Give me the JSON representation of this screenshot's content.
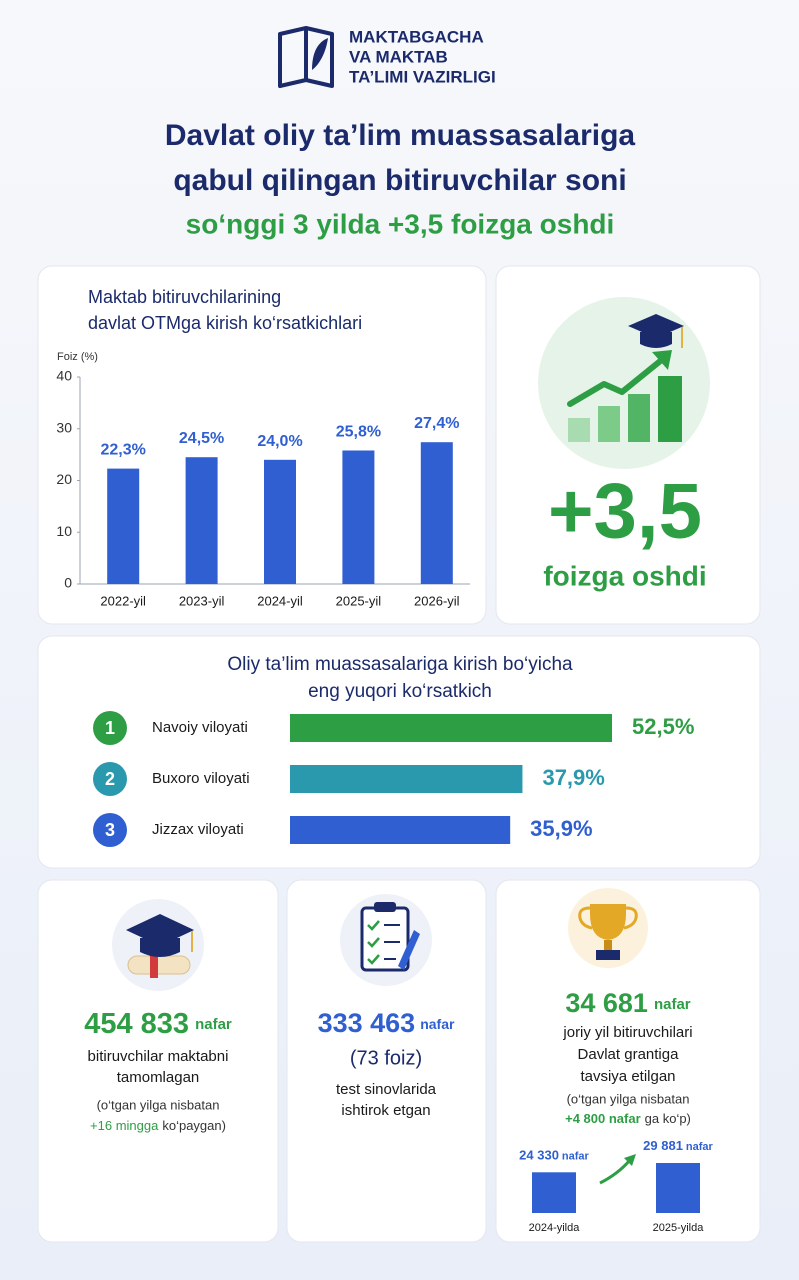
{
  "header": {
    "logo": [
      "MAKTABGACHA",
      "VA MAKTAB",
      "TA’LIMI VAZIRLIGI"
    ],
    "title": [
      "Davlat oliy ta’lim muassasalariga",
      "qabul qilingan bitiruvchilar soni"
    ],
    "subtitle": "so‘nggi 3 yilda +3,5 foizga oshdi"
  },
  "chart_data": [
    {
      "type": "bar",
      "title": [
        "Maktab bitiruvchilarining",
        "davlat OTMga kirish ko‘rsatkichlari"
      ],
      "y_label": "Foiz (%)",
      "categories": [
        "2022-yil",
        "2023-yil",
        "2024-yil",
        "2025-yil",
        "2026-yil"
      ],
      "values": [
        22.3,
        24.5,
        24.0,
        25.8,
        27.4
      ],
      "value_labels": [
        "22,3%",
        "24,5%",
        "24,0%",
        "25,8%",
        "27,4%"
      ],
      "color": "#2f5fd0",
      "ylim": [
        0,
        40
      ],
      "yticks": [
        0,
        10,
        20,
        30,
        40
      ],
      "grid": false
    },
    {
      "type": "hbar",
      "title": [
        "Oliy ta’lim muassasalariga kirish bo‘yicha",
        "eng yuqori ko‘rsatkich"
      ],
      "ranks": [
        "1",
        "2",
        "3"
      ],
      "categories": [
        "Navoiy viloyati",
        "Buxoro viloyati",
        "Jizzax viloyati"
      ],
      "values": [
        52.5,
        37.9,
        35.9
      ],
      "value_labels": [
        "52,5%",
        "37,9%",
        "35,9%"
      ],
      "colors": [
        "#2e9e45",
        "#2a98ad",
        "#2f5fd0"
      ]
    },
    {
      "type": "bar",
      "categories": [
        "2024-yilda",
        "2025-yilda"
      ],
      "values": [
        24330,
        29881
      ],
      "value_labels": [
        "24 330",
        "29 881"
      ],
      "unit": "nafar",
      "color": "#2f5fd0"
    }
  ],
  "highlight": {
    "value": "+3,5",
    "caption": "foizga oshdi"
  },
  "stats": [
    {
      "value": "454 833",
      "unit": "nafar",
      "lines": [
        "bitiruvchilar maktabni",
        "tamomlagan"
      ],
      "note": "(o‘tgan yilga nisbatan",
      "note_highlight": "+16 mingga",
      "note_end": "ko‘paygan)"
    },
    {
      "value": "333 463",
      "unit": "nafar",
      "share": "(73 foiz)",
      "lines": [
        "test sinovlarida",
        "ishtirok etgan"
      ]
    },
    {
      "value": "34 681",
      "unit": "nafar",
      "lines": [
        "joriy yil bitiruvchilari",
        "Davlat grantiga",
        "tavsiya etilgan"
      ],
      "note": "(o‘tgan yilga nisbatan",
      "note_highlight": "+4 800 nafar",
      "note_end": "ga ko‘p)"
    }
  ]
}
